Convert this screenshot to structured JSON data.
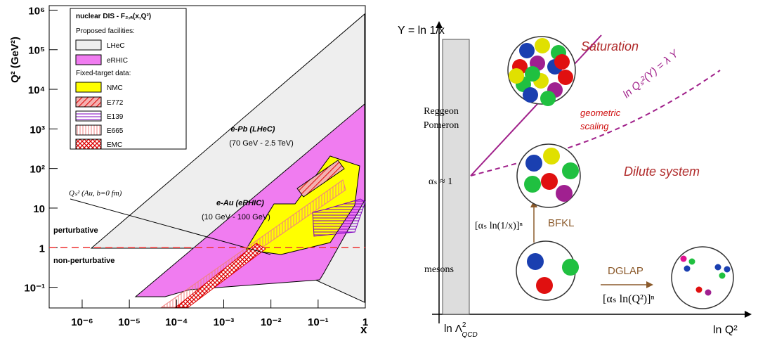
{
  "left_plot": {
    "legend_title": "nuclear DIS - F₂,ₐ(x,Q²)",
    "legend_groups": [
      "Proposed facilities:",
      "Fixed-target data:"
    ],
    "legend_entries": [
      "LHeC",
      "eRHIC",
      "NMC",
      "E772",
      "E139",
      "E665",
      "EMC"
    ],
    "x_label": "x",
    "y_label": "Q² (GeV²)",
    "xscale": "log",
    "yscale": "log",
    "xlim": [
      2e-07,
      1
    ],
    "ylim": [
      0.03,
      1300000
    ],
    "xticks": [
      {
        "value": 1e-06,
        "label": "10⁻⁶"
      },
      {
        "value": 1e-05,
        "label": "10⁻⁵"
      },
      {
        "value": 0.0001,
        "label": "10⁻⁴"
      },
      {
        "value": 0.001,
        "label": "10⁻³"
      },
      {
        "value": 0.01,
        "label": "10⁻²"
      },
      {
        "value": 0.1,
        "label": "10⁻¹"
      },
      1
    ],
    "yticks": [
      {
        "value": 0.1,
        "label": "10⁻¹"
      },
      1,
      10,
      {
        "value": 100,
        "label": "10²"
      },
      {
        "value": 1000,
        "label": "10³"
      },
      {
        "value": 10000,
        "label": "10⁴"
      },
      {
        "value": 100000,
        "label": "10⁵"
      },
      {
        "value": 1000000,
        "label": "10⁶"
      }
    ],
    "threshold_line": 1,
    "annotations": [
      "e-Pb (LHeC)",
      "(70 GeV - 2.5 TeV)",
      "e-Au (eRHIC)",
      "(10 GeV - 100 GeV)",
      "Qₛ² (Au, b=0 fm)",
      "perturbative",
      "non-perturbative"
    ]
  },
  "right_diagram": {
    "y_axis_label": "Y = ln 1/x",
    "x_axis_label": "ln Q²",
    "x0_label": {
      "main": "ln Λ",
      "sup": "2",
      "sub": "QCD"
    },
    "bar_labels": [
      "Reggeon",
      "Pomeron",
      "mesons",
      "αₛ ≈ 1"
    ],
    "regions": [
      "Saturation",
      "Dilute system"
    ],
    "saturation_line": "ln Qₛ²(Y) = λ Y",
    "scaling": [
      "geometric",
      "scaling"
    ],
    "bfkl": "BFKL",
    "bfkl_term": "[αₛ ln(1/x)]ⁿ",
    "dglap": "DGLAP",
    "dglap_term": "[αₛ ln(Q²)]ⁿ"
  }
}
